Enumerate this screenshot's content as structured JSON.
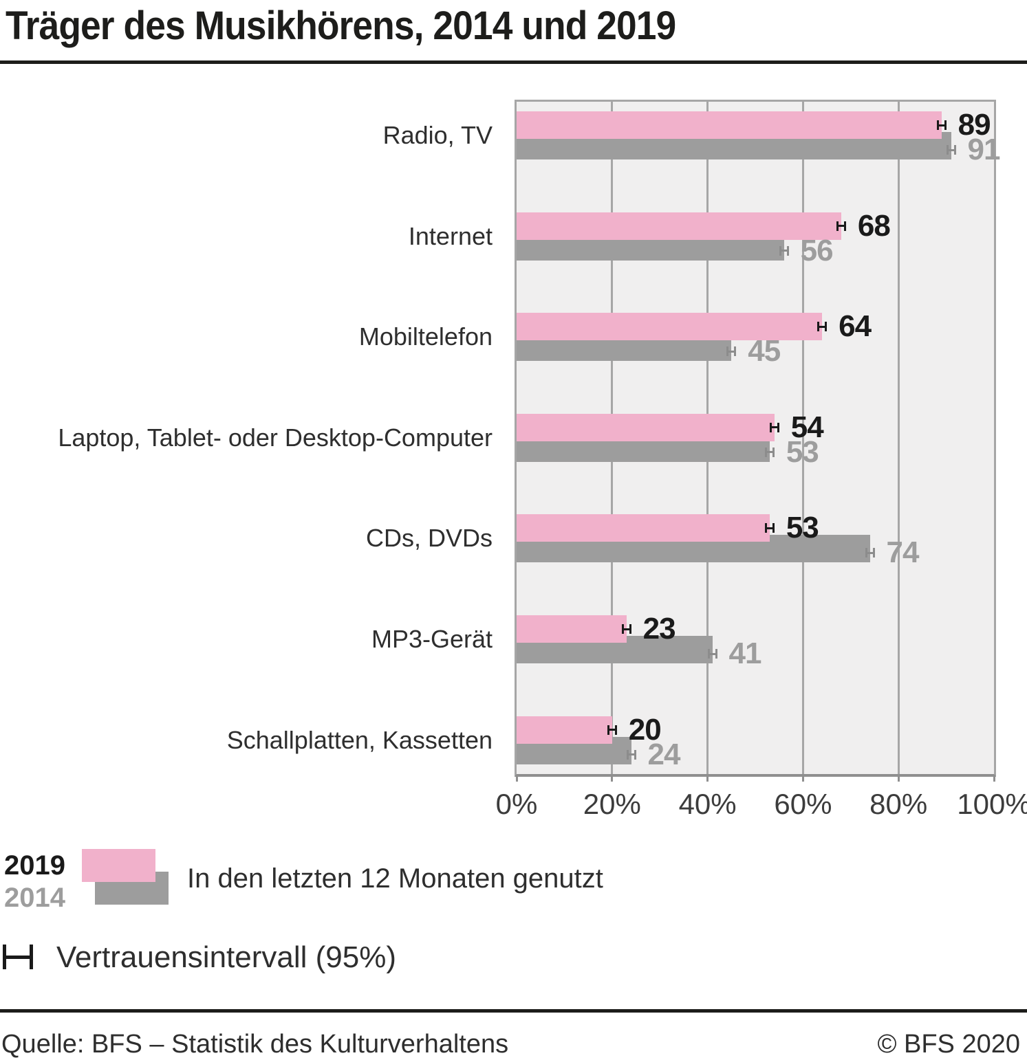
{
  "header": {
    "title": "Träger des Musikhörens, 2014 und 2019"
  },
  "chart_data": {
    "type": "bar",
    "orientation": "horizontal",
    "title": "Träger des Musikhörens, 2014 und 2019",
    "categories": [
      "Radio, TV",
      "Internet",
      "Mobiltelefon",
      "Laptop, Tablet- oder Desktop-Computer",
      "CDs, DVDs",
      "MP3-Gerät",
      "Schallplatten, Kassetten"
    ],
    "series": [
      {
        "name": "2019",
        "color": "#f1b1cb",
        "value_label_color": "#1a1a1a",
        "error_marker_color": "#1a1a1a",
        "values": [
          89,
          68,
          64,
          54,
          53,
          23,
          20
        ]
      },
      {
        "name": "2014",
        "color": "#9d9d9d",
        "value_label_color": "#9d9d9d",
        "error_marker_color": "#8c8c8c",
        "values": [
          91,
          56,
          45,
          53,
          74,
          41,
          24
        ]
      }
    ],
    "xlabel": "",
    "ylabel": "",
    "xlim": [
      0,
      100
    ],
    "x_tick_labels": [
      "0%",
      "20%",
      "40%",
      "60%",
      "80%",
      "100%"
    ],
    "grid": "vertical",
    "error_bars": "Vertrauensintervall (95%) als Marker am Balkenende"
  },
  "legend": {
    "year_2019": "2019",
    "year_2014": "2014",
    "description": "In den letzten 12 Monaten genutzt",
    "ci_label": "Vertrauensintervall (95%)"
  },
  "footer": {
    "source": "Quelle: BFS – Statistik des Kulturverhaltens",
    "copyright": "© BFS 2020"
  },
  "colors": {
    "bar_2019": "#f1b1cb",
    "bar_2014": "#9d9d9d",
    "plot_background": "#f0efef",
    "gridline": "#a6a6a6",
    "plot_border": "#a6a6a6",
    "axis_line": "#8f8f8f",
    "title_text": "#1d1d1b",
    "category_text": "#2e2e2e",
    "value_2019": "#1a1a1a",
    "value_2014": "#9d9d9d"
  }
}
